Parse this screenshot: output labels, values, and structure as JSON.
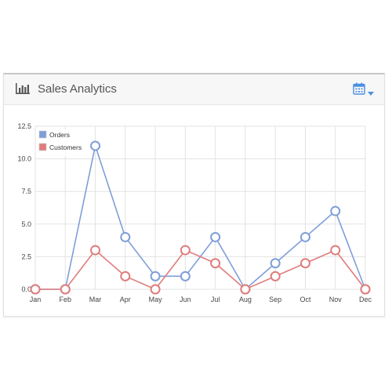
{
  "widget": {
    "title": "Sales Analytics",
    "header_icon": "bar-chart-icon",
    "toolbar_icon": "calendar-icon",
    "toolbar_caret": "chevron-down-icon",
    "accent_color": "#4a90e2"
  },
  "chart_data": {
    "type": "line",
    "categories": [
      "Jan",
      "Feb",
      "Mar",
      "Apr",
      "May",
      "Jun",
      "Jul",
      "Aug",
      "Sep",
      "Oct",
      "Nov",
      "Dec"
    ],
    "series": [
      {
        "name": "Orders",
        "values": [
          0,
          0,
          11,
          4,
          1,
          1,
          4,
          0,
          2,
          4,
          6,
          0
        ],
        "color": "#7f9ed9"
      },
      {
        "name": "Customers",
        "values": [
          0,
          0,
          3,
          1,
          0,
          3,
          2,
          0,
          1,
          2,
          3,
          0
        ],
        "color": "#e07c7c"
      }
    ],
    "yticks": [
      "0.0",
      "2.5",
      "5.0",
      "7.5",
      "10.0",
      "12.5"
    ],
    "ylim": [
      0,
      12.5
    ],
    "grid": true,
    "legend_position": "top-left"
  }
}
